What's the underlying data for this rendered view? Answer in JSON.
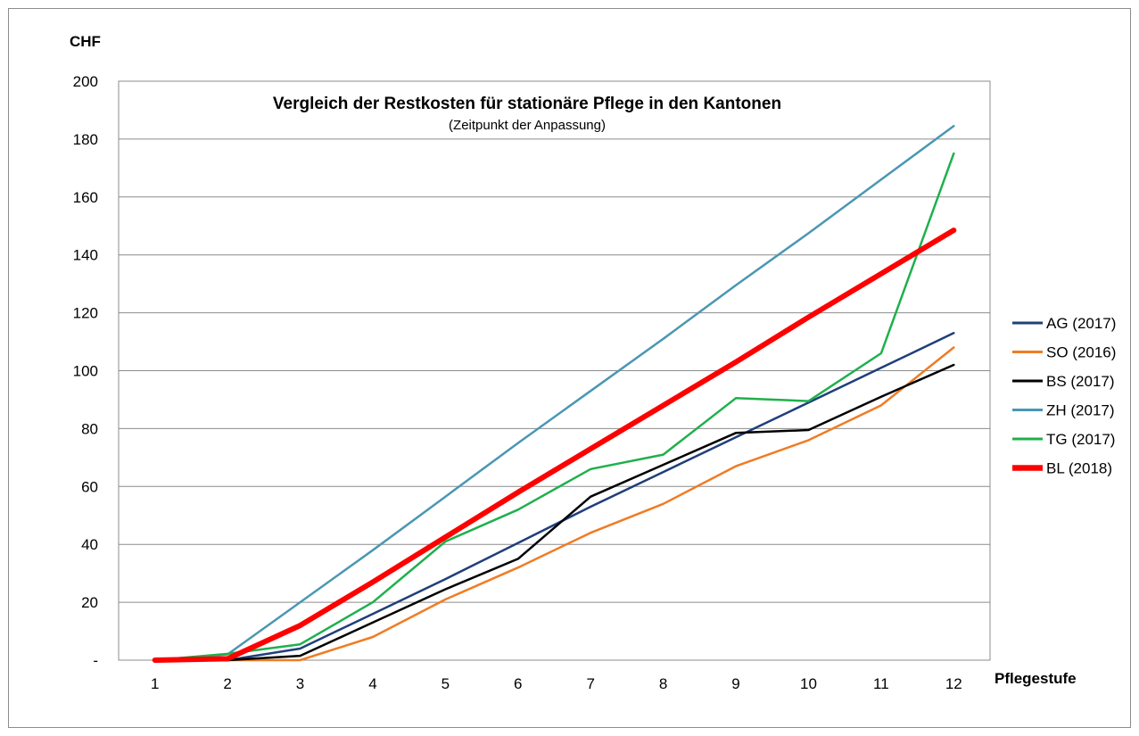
{
  "chart_data": {
    "type": "line",
    "title": "Vergleich der Restkosten für stationäre Pflege in den Kantonen",
    "subtitle": "(Zeitpunkt der Anpassung)",
    "ylabel": "CHF",
    "xlabel": "Pflegestufe",
    "ylim": [
      0,
      200
    ],
    "yticks": [
      0,
      20,
      40,
      60,
      80,
      100,
      120,
      140,
      160,
      180,
      200
    ],
    "ytick_labels": [
      "-",
      "20",
      "40",
      "60",
      "80",
      "100",
      "120",
      "140",
      "160",
      "180",
      "200"
    ],
    "categories": [
      "1",
      "2",
      "3",
      "4",
      "5",
      "6",
      "7",
      "8",
      "9",
      "10",
      "11",
      "12"
    ],
    "grid": true,
    "legend_position": "right",
    "series": [
      {
        "name": "AG (2017)",
        "color": "#1f3f7a",
        "values": [
          0,
          0,
          4,
          16,
          28,
          40.5,
          53,
          65,
          77,
          89,
          101,
          113
        ]
      },
      {
        "name": "SO (2016)",
        "color": "#f07c24",
        "values": [
          0,
          0,
          0,
          8,
          21,
          32,
          44,
          54,
          67,
          76,
          88,
          108
        ]
      },
      {
        "name": "BS (2017)",
        "color": "#000000",
        "values": [
          0,
          0,
          1.5,
          13,
          24.5,
          35,
          56.5,
          67.5,
          78.5,
          79.5,
          91,
          102
        ]
      },
      {
        "name": "ZH (2017)",
        "color": "#4a97b3",
        "values": [
          0,
          2,
          20,
          38,
          56.5,
          75,
          93,
          111,
          129.5,
          147.5,
          166,
          184.5
        ]
      },
      {
        "name": "TG (2017)",
        "color": "#1fb04c",
        "values": [
          0,
          2.2,
          5.5,
          20,
          41,
          52,
          66,
          71,
          90.5,
          89.5,
          106,
          175
        ]
      },
      {
        "name": "BL (2018)",
        "color": "#ff0000",
        "values": [
          0,
          0.5,
          12,
          27,
          42.5,
          58,
          73,
          88,
          103,
          118.5,
          133.5,
          148.5
        ]
      }
    ]
  }
}
